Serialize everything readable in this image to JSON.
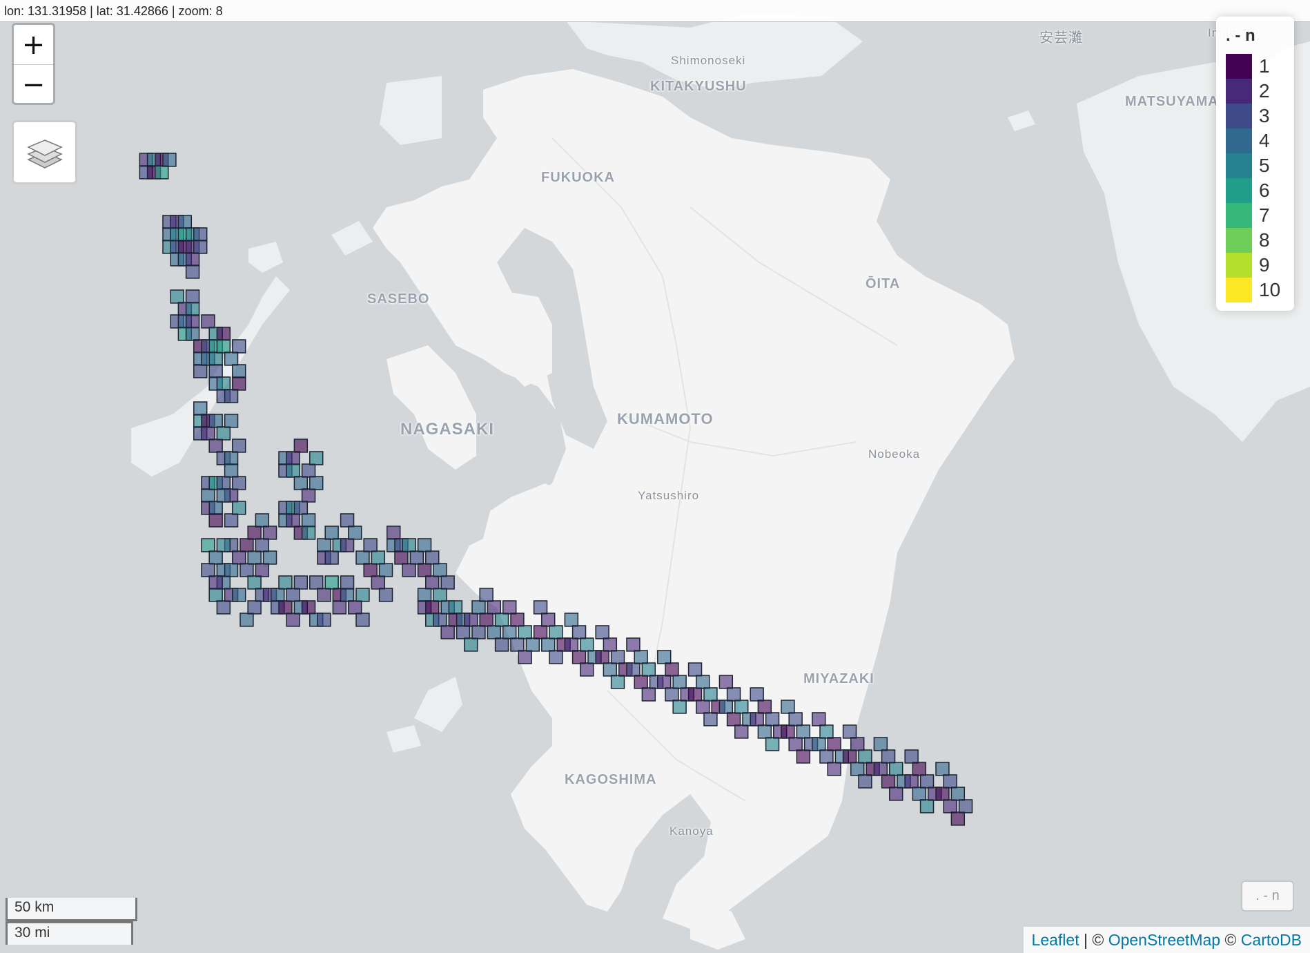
{
  "coords": {
    "text": "lon: 131.31958 | lat: 31.42866 | zoom: 8"
  },
  "zoom": {
    "in_label": "+",
    "out_label": "−"
  },
  "layers_control": {
    "icon": "layers-icon"
  },
  "legend": {
    "title": ". - n",
    "items": [
      {
        "label": "1",
        "color": "#440154"
      },
      {
        "label": "2",
        "color": "#482878"
      },
      {
        "label": "3",
        "color": "#3E4A89"
      },
      {
        "label": "4",
        "color": "#31688E"
      },
      {
        "label": "5",
        "color": "#26828E"
      },
      {
        "label": "6",
        "color": "#1F9E89"
      },
      {
        "label": "7",
        "color": "#35B779"
      },
      {
        "label": "8",
        "color": "#6DCD59"
      },
      {
        "label": "9",
        "color": "#B4DE2C"
      },
      {
        "label": "10",
        "color": "#FDE725"
      }
    ]
  },
  "scale": {
    "km": "50 km",
    "mi": "30 mi"
  },
  "toggle": {
    "label": ". - n"
  },
  "attribution": {
    "leaflet": "Leaflet",
    "sep": " | © ",
    "osm": "OpenStreetMap",
    "sep2": " © ",
    "carto": "CartoDB"
  },
  "places": [
    {
      "name": "Shimonoseki",
      "kind": "town"
    },
    {
      "name": "KITAKYUSHU",
      "kind": "city"
    },
    {
      "name": "FUKUOKA",
      "kind": "city"
    },
    {
      "name": "SASEBO",
      "kind": "city"
    },
    {
      "name": "NAGASAKI",
      "kind": "city"
    },
    {
      "name": "KUMAMOTO",
      "kind": "city"
    },
    {
      "name": "ŌITA",
      "kind": "city"
    },
    {
      "name": "Nobeoka",
      "kind": "town"
    },
    {
      "name": "Yatsushiro",
      "kind": "town"
    },
    {
      "name": "MIYAZAKI",
      "kind": "city"
    },
    {
      "name": "KAGOSHIMA",
      "kind": "city"
    },
    {
      "name": "Kanoya",
      "kind": "town"
    },
    {
      "name": "MATSUYAMA",
      "kind": "city"
    },
    {
      "name": "安芸灘",
      "kind": "town"
    },
    {
      "name": "Imab",
      "kind": "town"
    }
  ],
  "hex_grid": {
    "cell_size_km": 5,
    "value_field": "n",
    "cells": [
      [
        2,
        9,
        2
      ],
      [
        2,
        10,
        3
      ],
      [
        3,
        9,
        5
      ],
      [
        3,
        10,
        1
      ],
      [
        4,
        9,
        1
      ],
      [
        4,
        10,
        6
      ],
      [
        5,
        9,
        4
      ],
      [
        5,
        14,
        3
      ],
      [
        5,
        15,
        4
      ],
      [
        5,
        16,
        5
      ],
      [
        6,
        14,
        2
      ],
      [
        6,
        15,
        5
      ],
      [
        6,
        16,
        3
      ],
      [
        6,
        17,
        4
      ],
      [
        7,
        14,
        4
      ],
      [
        7,
        15,
        6
      ],
      [
        7,
        16,
        1
      ],
      [
        7,
        17,
        4
      ],
      [
        8,
        15,
        5
      ],
      [
        8,
        16,
        2
      ],
      [
        8,
        17,
        2
      ],
      [
        8,
        18,
        3
      ],
      [
        9,
        15,
        3
      ],
      [
        9,
        16,
        3
      ],
      [
        6,
        20,
        5
      ],
      [
        6,
        22,
        3
      ],
      [
        7,
        21,
        2
      ],
      [
        7,
        22,
        4
      ],
      [
        7,
        23,
        6
      ],
      [
        8,
        20,
        3
      ],
      [
        8,
        21,
        5
      ],
      [
        8,
        22,
        2
      ],
      [
        8,
        23,
        4
      ],
      [
        9,
        24,
        1
      ],
      [
        9,
        25,
        4
      ],
      [
        9,
        26,
        3
      ],
      [
        10,
        22,
        2
      ],
      [
        10,
        24,
        3
      ],
      [
        10,
        25,
        4
      ],
      [
        11,
        23,
        5
      ],
      [
        11,
        24,
        6
      ],
      [
        11,
        25,
        5
      ],
      [
        11,
        26,
        3
      ],
      [
        11,
        27,
        4
      ],
      [
        12,
        23,
        1
      ],
      [
        12,
        24,
        6
      ],
      [
        12,
        27,
        5
      ],
      [
        12,
        28,
        3
      ],
      [
        13,
        25,
        4
      ],
      [
        13,
        28,
        3
      ],
      [
        14,
        24,
        3
      ],
      [
        14,
        26,
        4
      ],
      [
        14,
        27,
        1
      ],
      [
        9,
        30,
        5
      ],
      [
        9,
        31,
        3
      ],
      [
        9,
        29,
        4
      ],
      [
        10,
        30,
        1
      ],
      [
        10,
        31,
        2
      ],
      [
        11,
        30,
        4
      ],
      [
        11,
        32,
        2
      ],
      [
        12,
        31,
        5
      ],
      [
        12,
        33,
        3
      ],
      [
        13,
        30,
        4
      ],
      [
        13,
        33,
        4
      ],
      [
        14,
        32,
        3
      ],
      [
        10,
        35,
        3
      ],
      [
        10,
        36,
        4
      ],
      [
        11,
        35,
        6
      ],
      [
        12,
        35,
        3
      ],
      [
        13,
        34,
        4
      ],
      [
        13,
        36,
        2
      ],
      [
        14,
        35,
        3
      ],
      [
        10,
        37,
        2
      ],
      [
        11,
        37,
        4
      ],
      [
        11,
        38,
        1
      ],
      [
        12,
        36,
        4
      ],
      [
        13,
        38,
        3
      ],
      [
        14,
        37,
        5
      ],
      [
        13,
        40,
        3
      ],
      [
        14,
        41,
        2
      ],
      [
        15,
        40,
        1
      ],
      [
        15,
        42,
        3
      ],
      [
        16,
        41,
        4
      ],
      [
        16,
        43,
        5
      ],
      [
        17,
        42,
        2
      ],
      [
        17,
        44,
        3
      ],
      [
        12,
        42,
        4
      ],
      [
        12,
        43,
        4
      ],
      [
        11,
        44,
        5
      ],
      [
        12,
        45,
        3
      ],
      [
        13,
        44,
        2
      ],
      [
        14,
        44,
        4
      ],
      [
        15,
        46,
        4
      ],
      [
        16,
        45,
        3
      ],
      [
        10,
        40,
        6
      ],
      [
        11,
        41,
        4
      ],
      [
        10,
        42,
        3
      ],
      [
        11,
        43,
        2
      ],
      [
        12,
        40,
        5
      ],
      [
        13,
        42,
        4
      ],
      [
        16,
        39,
        1
      ],
      [
        17,
        38,
        4
      ],
      [
        17,
        40,
        3
      ],
      [
        18,
        39,
        2
      ],
      [
        18,
        41,
        4
      ],
      [
        20,
        33,
        4
      ],
      [
        20,
        34,
        3
      ],
      [
        21,
        33,
        2
      ],
      [
        21,
        34,
        5
      ],
      [
        22,
        32,
        1
      ],
      [
        22,
        35,
        4
      ],
      [
        23,
        34,
        3
      ],
      [
        23,
        36,
        2
      ],
      [
        24,
        35,
        4
      ],
      [
        24,
        33,
        5
      ],
      [
        20,
        37,
        3
      ],
      [
        20,
        38,
        4
      ],
      [
        21,
        37,
        5
      ],
      [
        21,
        38,
        2
      ],
      [
        22,
        37,
        3
      ],
      [
        22,
        39,
        1
      ],
      [
        23,
        38,
        4
      ],
      [
        23,
        39,
        5
      ],
      [
        18,
        44,
        2
      ],
      [
        19,
        44,
        4
      ],
      [
        19,
        45,
        3
      ],
      [
        20,
        43,
        5
      ],
      [
        20,
        45,
        1
      ],
      [
        21,
        44,
        3
      ],
      [
        21,
        46,
        2
      ],
      [
        22,
        45,
        4
      ],
      [
        22,
        43,
        3
      ],
      [
        25,
        40,
        4
      ],
      [
        25,
        41,
        2
      ],
      [
        26,
        41,
        3
      ],
      [
        26,
        39,
        4
      ],
      [
        27,
        40,
        5
      ],
      [
        28,
        40,
        2
      ],
      [
        28,
        38,
        3
      ],
      [
        29,
        39,
        4
      ],
      [
        26,
        43,
        6
      ],
      [
        27,
        44,
        1
      ],
      [
        27,
        45,
        2
      ],
      [
        28,
        44,
        4
      ],
      [
        28,
        43,
        3
      ],
      [
        29,
        45,
        2
      ],
      [
        30,
        44,
        5
      ],
      [
        30,
        46,
        3
      ],
      [
        24,
        43,
        3
      ],
      [
        25,
        44,
        2
      ],
      [
        23,
        45,
        1
      ],
      [
        24,
        46,
        4
      ],
      [
        25,
        46,
        3
      ],
      [
        30,
        41,
        4
      ],
      [
        31,
        40,
        3
      ],
      [
        31,
        42,
        1
      ],
      [
        32,
        41,
        5
      ],
      [
        32,
        43,
        2
      ],
      [
        33,
        42,
        4
      ],
      [
        33,
        44,
        3
      ],
      [
        34,
        39,
        2
      ],
      [
        34,
        40,
        4
      ],
      [
        35,
        40,
        3
      ],
      [
        35,
        41,
        1
      ],
      [
        36,
        40,
        5
      ],
      [
        36,
        42,
        2
      ],
      [
        37,
        41,
        3
      ],
      [
        38,
        40,
        4
      ],
      [
        38,
        42,
        1
      ],
      [
        39,
        41,
        3
      ],
      [
        39,
        43,
        2
      ],
      [
        40,
        42,
        4
      ],
      [
        40,
        44,
        5
      ],
      [
        41,
        43,
        3
      ],
      [
        38,
        44,
        4
      ],
      [
        38,
        45,
        2
      ],
      [
        39,
        45,
        1
      ],
      [
        39,
        46,
        5
      ],
      [
        40,
        46,
        3
      ],
      [
        41,
        45,
        4
      ],
      [
        41,
        47,
        2
      ],
      [
        42,
        45,
        5
      ],
      [
        42,
        46,
        1
      ],
      [
        43,
        46,
        4
      ],
      [
        43,
        47,
        3
      ],
      [
        44,
        46,
        2
      ],
      [
        44,
        48,
        5
      ],
      [
        45,
        47,
        3
      ],
      [
        45,
        45,
        4
      ],
      [
        46,
        44,
        3
      ],
      [
        46,
        46,
        1
      ],
      [
        47,
        45,
        2
      ],
      [
        47,
        47,
        4
      ],
      [
        48,
        46,
        5
      ],
      [
        48,
        48,
        3
      ],
      [
        49,
        45,
        2
      ],
      [
        49,
        47,
        4
      ],
      [
        50,
        46,
        1
      ],
      [
        50,
        48,
        3
      ],
      [
        51,
        47,
        5
      ],
      [
        51,
        49,
        2
      ],
      [
        52,
        48,
        4
      ],
      [
        53,
        45,
        3
      ],
      [
        53,
        47,
        1
      ],
      [
        54,
        46,
        2
      ],
      [
        54,
        48,
        4
      ],
      [
        55,
        47,
        5
      ],
      [
        55,
        49,
        3
      ],
      [
        56,
        48,
        1
      ],
      [
        57,
        46,
        4
      ],
      [
        57,
        48,
        2
      ],
      [
        58,
        47,
        3
      ],
      [
        58,
        49,
        1
      ],
      [
        59,
        48,
        5
      ],
      [
        59,
        50,
        2
      ],
      [
        60,
        49,
        4
      ],
      [
        61,
        47,
        3
      ],
      [
        61,
        49,
        1
      ],
      [
        62,
        48,
        2
      ],
      [
        62,
        50,
        4
      ],
      [
        63,
        49,
        3
      ],
      [
        63,
        51,
        5
      ],
      [
        64,
        50,
        1
      ],
      [
        65,
        48,
        2
      ],
      [
        65,
        50,
        3
      ],
      [
        66,
        49,
        4
      ],
      [
        66,
        51,
        1
      ],
      [
        67,
        50,
        5
      ],
      [
        67,
        52,
        2
      ],
      [
        68,
        51,
        3
      ],
      [
        69,
        49,
        4
      ],
      [
        69,
        51,
        2
      ],
      [
        70,
        50,
        1
      ],
      [
        70,
        52,
        3
      ],
      [
        71,
        51,
        4
      ],
      [
        71,
        53,
        5
      ],
      [
        72,
        52,
        2
      ],
      [
        73,
        50,
        3
      ],
      [
        73,
        52,
        1
      ],
      [
        74,
        51,
        4
      ],
      [
        74,
        53,
        2
      ],
      [
        75,
        52,
        5
      ],
      [
        75,
        54,
        3
      ],
      [
        76,
        53,
        1
      ],
      [
        77,
        51,
        2
      ],
      [
        77,
        53,
        4
      ],
      [
        78,
        52,
        3
      ],
      [
        78,
        54,
        1
      ],
      [
        79,
        53,
        5
      ],
      [
        79,
        55,
        2
      ],
      [
        80,
        54,
        4
      ],
      [
        81,
        52,
        3
      ],
      [
        81,
        54,
        2
      ],
      [
        82,
        53,
        1
      ],
      [
        82,
        55,
        4
      ],
      [
        83,
        54,
        3
      ],
      [
        83,
        56,
        5
      ],
      [
        84,
        55,
        2
      ],
      [
        85,
        53,
        4
      ],
      [
        85,
        55,
        1
      ],
      [
        86,
        54,
        3
      ],
      [
        86,
        56,
        2
      ],
      [
        87,
        55,
        4
      ],
      [
        87,
        57,
        1
      ],
      [
        88,
        56,
        3
      ],
      [
        89,
        54,
        2
      ],
      [
        89,
        56,
        4
      ],
      [
        90,
        55,
        5
      ],
      [
        90,
        57,
        3
      ],
      [
        91,
        56,
        1
      ],
      [
        91,
        58,
        2
      ],
      [
        92,
        57,
        4
      ],
      [
        93,
        55,
        3
      ],
      [
        93,
        57,
        1
      ],
      [
        94,
        56,
        2
      ],
      [
        94,
        58,
        4
      ],
      [
        95,
        57,
        5
      ],
      [
        95,
        59,
        3
      ],
      [
        96,
        58,
        1
      ],
      [
        97,
        56,
        4
      ],
      [
        97,
        58,
        2
      ],
      [
        98,
        57,
        3
      ],
      [
        98,
        59,
        1
      ],
      [
        99,
        58,
        5
      ],
      [
        99,
        60,
        2
      ],
      [
        100,
        59,
        4
      ],
      [
        101,
        57,
        3
      ],
      [
        101,
        59,
        2
      ],
      [
        102,
        58,
        1
      ],
      [
        102,
        60,
        4
      ],
      [
        103,
        59,
        3
      ],
      [
        103,
        61,
        5
      ],
      [
        104,
        60,
        2
      ],
      [
        105,
        58,
        4
      ],
      [
        105,
        60,
        1
      ],
      [
        106,
        59,
        3
      ],
      [
        106,
        61,
        2
      ],
      [
        107,
        60,
        4
      ],
      [
        107,
        62,
        1
      ],
      [
        108,
        61,
        3
      ]
    ]
  }
}
